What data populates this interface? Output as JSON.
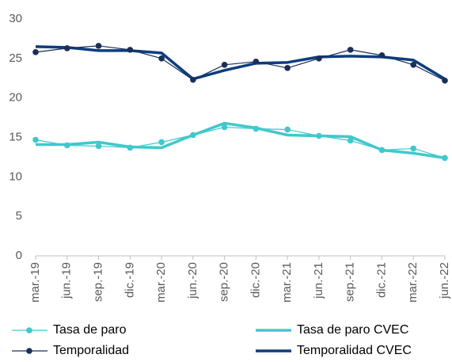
{
  "chart_data": {
    "type": "line",
    "categories": [
      "mar.-19",
      "jun.-19",
      "sep.-19",
      "dic.-19",
      "mar.-20",
      "jun.-20",
      "sep.-20",
      "dic.-20",
      "mar.-21",
      "jun.-21",
      "sep.-21",
      "dic.-21",
      "mar.-22",
      "jun.-22"
    ],
    "series": [
      {
        "name": "Tasa de paro",
        "color": "#40c8cc",
        "markers": true,
        "values": [
          14.7,
          14.0,
          13.9,
          13.7,
          14.4,
          15.3,
          16.3,
          16.1,
          16.0,
          15.2,
          14.6,
          13.4,
          13.6,
          12.4
        ]
      },
      {
        "name": "Tasa de paro CVEC",
        "color": "#40c8cc",
        "markers": false,
        "values": [
          14.1,
          14.1,
          14.4,
          13.8,
          13.7,
          15.3,
          16.8,
          16.2,
          15.3,
          15.2,
          15.1,
          13.4,
          13.0,
          12.4
        ]
      },
      {
        "name": "Temporalidad",
        "color": "#1a2f5a",
        "markers": true,
        "values": [
          25.8,
          26.3,
          26.6,
          26.1,
          25.0,
          22.3,
          24.2,
          24.6,
          23.8,
          25.0,
          26.1,
          25.4,
          24.2,
          22.2
        ]
      },
      {
        "name": "Temporalidad CVEC",
        "color": "#0d3d7e",
        "markers": false,
        "values": [
          26.5,
          26.4,
          26.0,
          26.0,
          25.7,
          22.4,
          23.5,
          24.4,
          24.5,
          25.2,
          25.3,
          25.2,
          24.8,
          22.4
        ]
      }
    ],
    "ylim": [
      0,
      30
    ],
    "yticks": [
      0,
      5,
      10,
      15,
      20,
      25,
      30
    ],
    "grid": false,
    "legend": "bottom"
  }
}
